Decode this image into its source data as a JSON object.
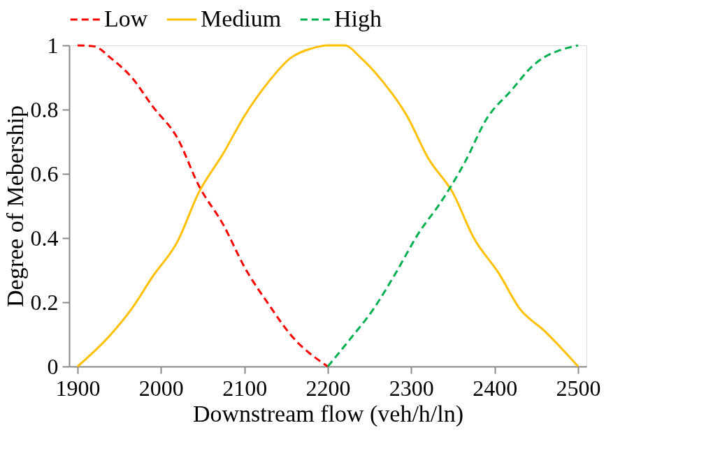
{
  "chart_data": {
    "type": "line",
    "xlabel": "Downstream flow (veh/h/ln)",
    "ylabel": "Degree of Mebership",
    "xlim": [
      1890,
      2510
    ],
    "xticks": [
      1900,
      2000,
      2100,
      2200,
      2300,
      2400,
      2500
    ],
    "ylim": [
      0,
      1
    ],
    "yticks": [
      0,
      0.2,
      0.4,
      0.6,
      0.8,
      1
    ],
    "grid": false,
    "legend": "top",
    "marker": "none",
    "series": [
      {
        "name": "Low",
        "color": "#ff0000",
        "line_style": "dashed",
        "x": [
          1900,
          1920,
          1940,
          1965,
          1990,
          2020,
          2045,
          2075,
          2100,
          2130,
          2155,
          2200
        ],
        "values": [
          1,
          0.997,
          0.96,
          0.9,
          0.81,
          0.71,
          0.565,
          0.44,
          0.31,
          0.19,
          0.1,
          0
        ]
      },
      {
        "name": "Medium",
        "color": "#ffc000",
        "line_style": "solid",
        "x": [
          1900,
          1940,
          1965,
          1990,
          2020,
          2045,
          2075,
          2100,
          2130,
          2155,
          2180,
          2200,
          2220,
          2240,
          2265,
          2295,
          2320,
          2350,
          2375,
          2405,
          2430,
          2460,
          2500
        ],
        "values": [
          0,
          0.1,
          0.18,
          0.28,
          0.39,
          0.54,
          0.665,
          0.78,
          0.89,
          0.96,
          0.99,
          1,
          1,
          0.96,
          0.89,
          0.78,
          0.65,
          0.54,
          0.4,
          0.29,
          0.18,
          0.11,
          0
        ]
      },
      {
        "name": "High",
        "color": "#00b050",
        "line_style": "dashed",
        "x": [
          2200,
          2225,
          2255,
          2280,
          2310,
          2335,
          2365,
          2390,
          2420,
          2445,
          2500
        ],
        "values": [
          0,
          0.08,
          0.18,
          0.285,
          0.42,
          0.51,
          0.64,
          0.77,
          0.86,
          0.935,
          1
        ]
      }
    ]
  }
}
